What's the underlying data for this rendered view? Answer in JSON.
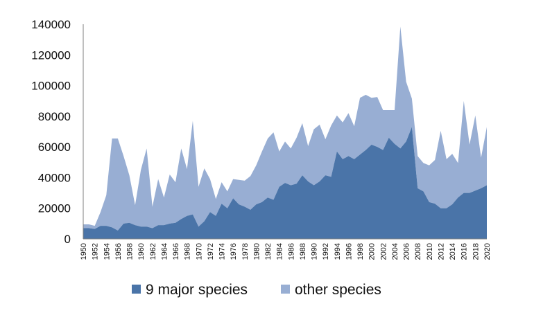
{
  "chart_data": {
    "type": "area",
    "stacked": true,
    "x": [
      1950,
      1951,
      1952,
      1953,
      1954,
      1955,
      1956,
      1957,
      1958,
      1959,
      1960,
      1961,
      1962,
      1963,
      1964,
      1965,
      1966,
      1967,
      1968,
      1969,
      1970,
      1971,
      1972,
      1973,
      1974,
      1975,
      1976,
      1977,
      1978,
      1979,
      1980,
      1981,
      1982,
      1983,
      1984,
      1985,
      1986,
      1987,
      1988,
      1989,
      1990,
      1991,
      1992,
      1993,
      1994,
      1995,
      1996,
      1997,
      1998,
      1999,
      2000,
      2001,
      2002,
      2003,
      2004,
      2005,
      2006,
      2007,
      2008,
      2009,
      2010,
      2011,
      2012,
      2013,
      2014,
      2015,
      2016,
      2017,
      2018,
      2019,
      2020
    ],
    "series": [
      {
        "name": "9 major species",
        "color": "#4A74A8",
        "values": [
          7000,
          7000,
          6500,
          8500,
          8500,
          7500,
          5500,
          10000,
          10500,
          9000,
          8000,
          8000,
          7000,
          9000,
          9000,
          10000,
          10500,
          13000,
          15000,
          16000,
          8000,
          11500,
          17500,
          15000,
          23000,
          20000,
          26500,
          22500,
          21000,
          19000,
          22500,
          24000,
          27000,
          25500,
          34000,
          36500,
          35000,
          36000,
          41500,
          37500,
          35000,
          37500,
          41500,
          40500,
          57000,
          52000,
          54000,
          52000,
          55000,
          58000,
          61500,
          60000,
          58000,
          66000,
          62000,
          59000,
          63500,
          73000,
          33000,
          31000,
          24000,
          23000,
          20000,
          20000,
          22500,
          27000,
          30000,
          30000,
          31500,
          33000,
          35000
        ]
      },
      {
        "name": "other species",
        "color": "#98AED3",
        "values": [
          2500,
          2500,
          2000,
          9000,
          20000,
          58000,
          60000,
          44000,
          31000,
          13000,
          37000,
          51000,
          14000,
          30000,
          18000,
          32000,
          26500,
          46000,
          30500,
          61000,
          26000,
          34500,
          21500,
          11000,
          14000,
          11000,
          12500,
          16000,
          17000,
          22000,
          25500,
          33000,
          38500,
          44000,
          23000,
          27000,
          24000,
          30000,
          34000,
          23000,
          36500,
          37000,
          23500,
          33500,
          23500,
          24000,
          28000,
          21500,
          37000,
          36000,
          30500,
          32500,
          26000,
          18000,
          22000,
          79500,
          39000,
          18500,
          21000,
          18500,
          24000,
          28500,
          50500,
          32000,
          33000,
          22500,
          60000,
          31500,
          49000,
          20000,
          38000
        ]
      }
    ],
    "ylim": [
      0,
      140000
    ],
    "yticks": [
      0,
      20000,
      40000,
      60000,
      80000,
      100000,
      120000,
      140000
    ],
    "ytick_labels": [
      "0",
      "20000",
      "40000",
      "60000",
      "80000",
      "100000",
      "120000",
      "140000"
    ],
    "xticks": [
      1950,
      1952,
      1954,
      1956,
      1958,
      1960,
      1962,
      1964,
      1966,
      1968,
      1970,
      1972,
      1974,
      1976,
      1978,
      1980,
      1982,
      1984,
      1986,
      1988,
      1990,
      1992,
      1994,
      1996,
      1998,
      2000,
      2002,
      2004,
      2006,
      2008,
      2010,
      2012,
      2014,
      2016,
      2018,
      2020
    ],
    "title": "",
    "xlabel": "",
    "ylabel": "",
    "grid": false,
    "legend_position": "bottom"
  }
}
